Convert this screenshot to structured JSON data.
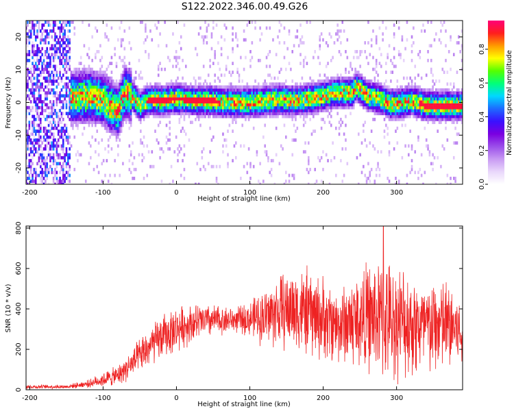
{
  "figure": {
    "title": "S122.2022.346.00.49.G26"
  },
  "colors": {
    "snr_line": "#ee2222",
    "colormap": [
      "#ffffff",
      "#e9d7fb",
      "#c89af3",
      "#9b4eea",
      "#7a00e0",
      "#3a10ff",
      "#1d6bff",
      "#00d8ff",
      "#00ff7a",
      "#55ff00",
      "#ffff00",
      "#ff9a00",
      "#ff1e1e",
      "#ff0078"
    ]
  },
  "chart_data": [
    {
      "type": "heatmap",
      "xlabel": "Height of straight line (km)",
      "ylabel": "Frequency (Hz)",
      "xlim": [
        -205,
        390
      ],
      "ylim": [
        -25,
        25
      ],
      "xticks": [
        -200,
        -100,
        0,
        100,
        200,
        300
      ],
      "xtick_labels": [
        "-200",
        "-100",
        "0",
        "100",
        "200",
        "300"
      ],
      "yticks": [
        -20,
        -10,
        0,
        10,
        20
      ],
      "ytick_labels": [
        "-20",
        "-10",
        "0",
        "10",
        "20"
      ],
      "ridge": {
        "x": [
          -205,
          -150,
          -120,
          -100,
          -90,
          -80,
          -70,
          -60,
          -50,
          -40,
          -30,
          -20,
          -10,
          0,
          10,
          20,
          40,
          50,
          60,
          80,
          100,
          120,
          140,
          160,
          180,
          200,
          220,
          240,
          245,
          260,
          280,
          290,
          300,
          310,
          320,
          340,
          360,
          390
        ],
        "y": [
          0,
          1,
          2,
          1,
          -1,
          -3,
          3,
          2,
          -1,
          0.5,
          1,
          0.5,
          1,
          1,
          1,
          0.5,
          0.5,
          0.5,
          0,
          0,
          0,
          0.5,
          1,
          0.5,
          1,
          2,
          3,
          3,
          5,
          2,
          1,
          -0.5,
          -0.5,
          0,
          0.5,
          -1,
          -1,
          -1
        ]
      },
      "colorbar": {
        "label": "Normalized spectral amplitude",
        "ticks": [
          0.0,
          0.2,
          0.4,
          0.6,
          0.8
        ],
        "tick_labels": [
          "0.0",
          "0.2",
          "0.4",
          "0.6",
          "0.8"
        ],
        "range": [
          0,
          0.97
        ]
      }
    },
    {
      "type": "line",
      "xlabel": "Height of straight line (km)",
      "ylabel": "SNR (10 * v/v)",
      "xlim": [
        -205,
        390
      ],
      "ylim": [
        0,
        810
      ],
      "xticks": [
        -200,
        -100,
        0,
        100,
        200,
        300
      ],
      "xtick_labels": [
        "-200",
        "-100",
        "0",
        "100",
        "200",
        "300"
      ],
      "yticks": [
        0,
        200,
        400,
        600,
        800
      ],
      "ytick_labels": [
        "0",
        "200",
        "400",
        "600",
        "800"
      ],
      "envelope": {
        "x": [
          -205,
          -150,
          -120,
          -100,
          -80,
          -60,
          -40,
          -20,
          0,
          20,
          40,
          60,
          80,
          100,
          120,
          140,
          160,
          180,
          200,
          220,
          240,
          260,
          280,
          300,
          320,
          340,
          360,
          380,
          390
        ],
        "mean": [
          15,
          15,
          30,
          50,
          70,
          130,
          200,
          260,
          300,
          330,
          340,
          345,
          345,
          350,
          360,
          390,
          400,
          380,
          350,
          320,
          340,
          360,
          350,
          340,
          330,
          300,
          320,
          310,
          250
        ],
        "spread": [
          8,
          8,
          15,
          30,
          40,
          60,
          80,
          90,
          90,
          80,
          70,
          60,
          50,
          70,
          120,
          150,
          170,
          180,
          170,
          150,
          190,
          220,
          240,
          230,
          220,
          200,
          200,
          180,
          120
        ],
        "peak": {
          "x": 282,
          "y": 810
        }
      }
    }
  ]
}
